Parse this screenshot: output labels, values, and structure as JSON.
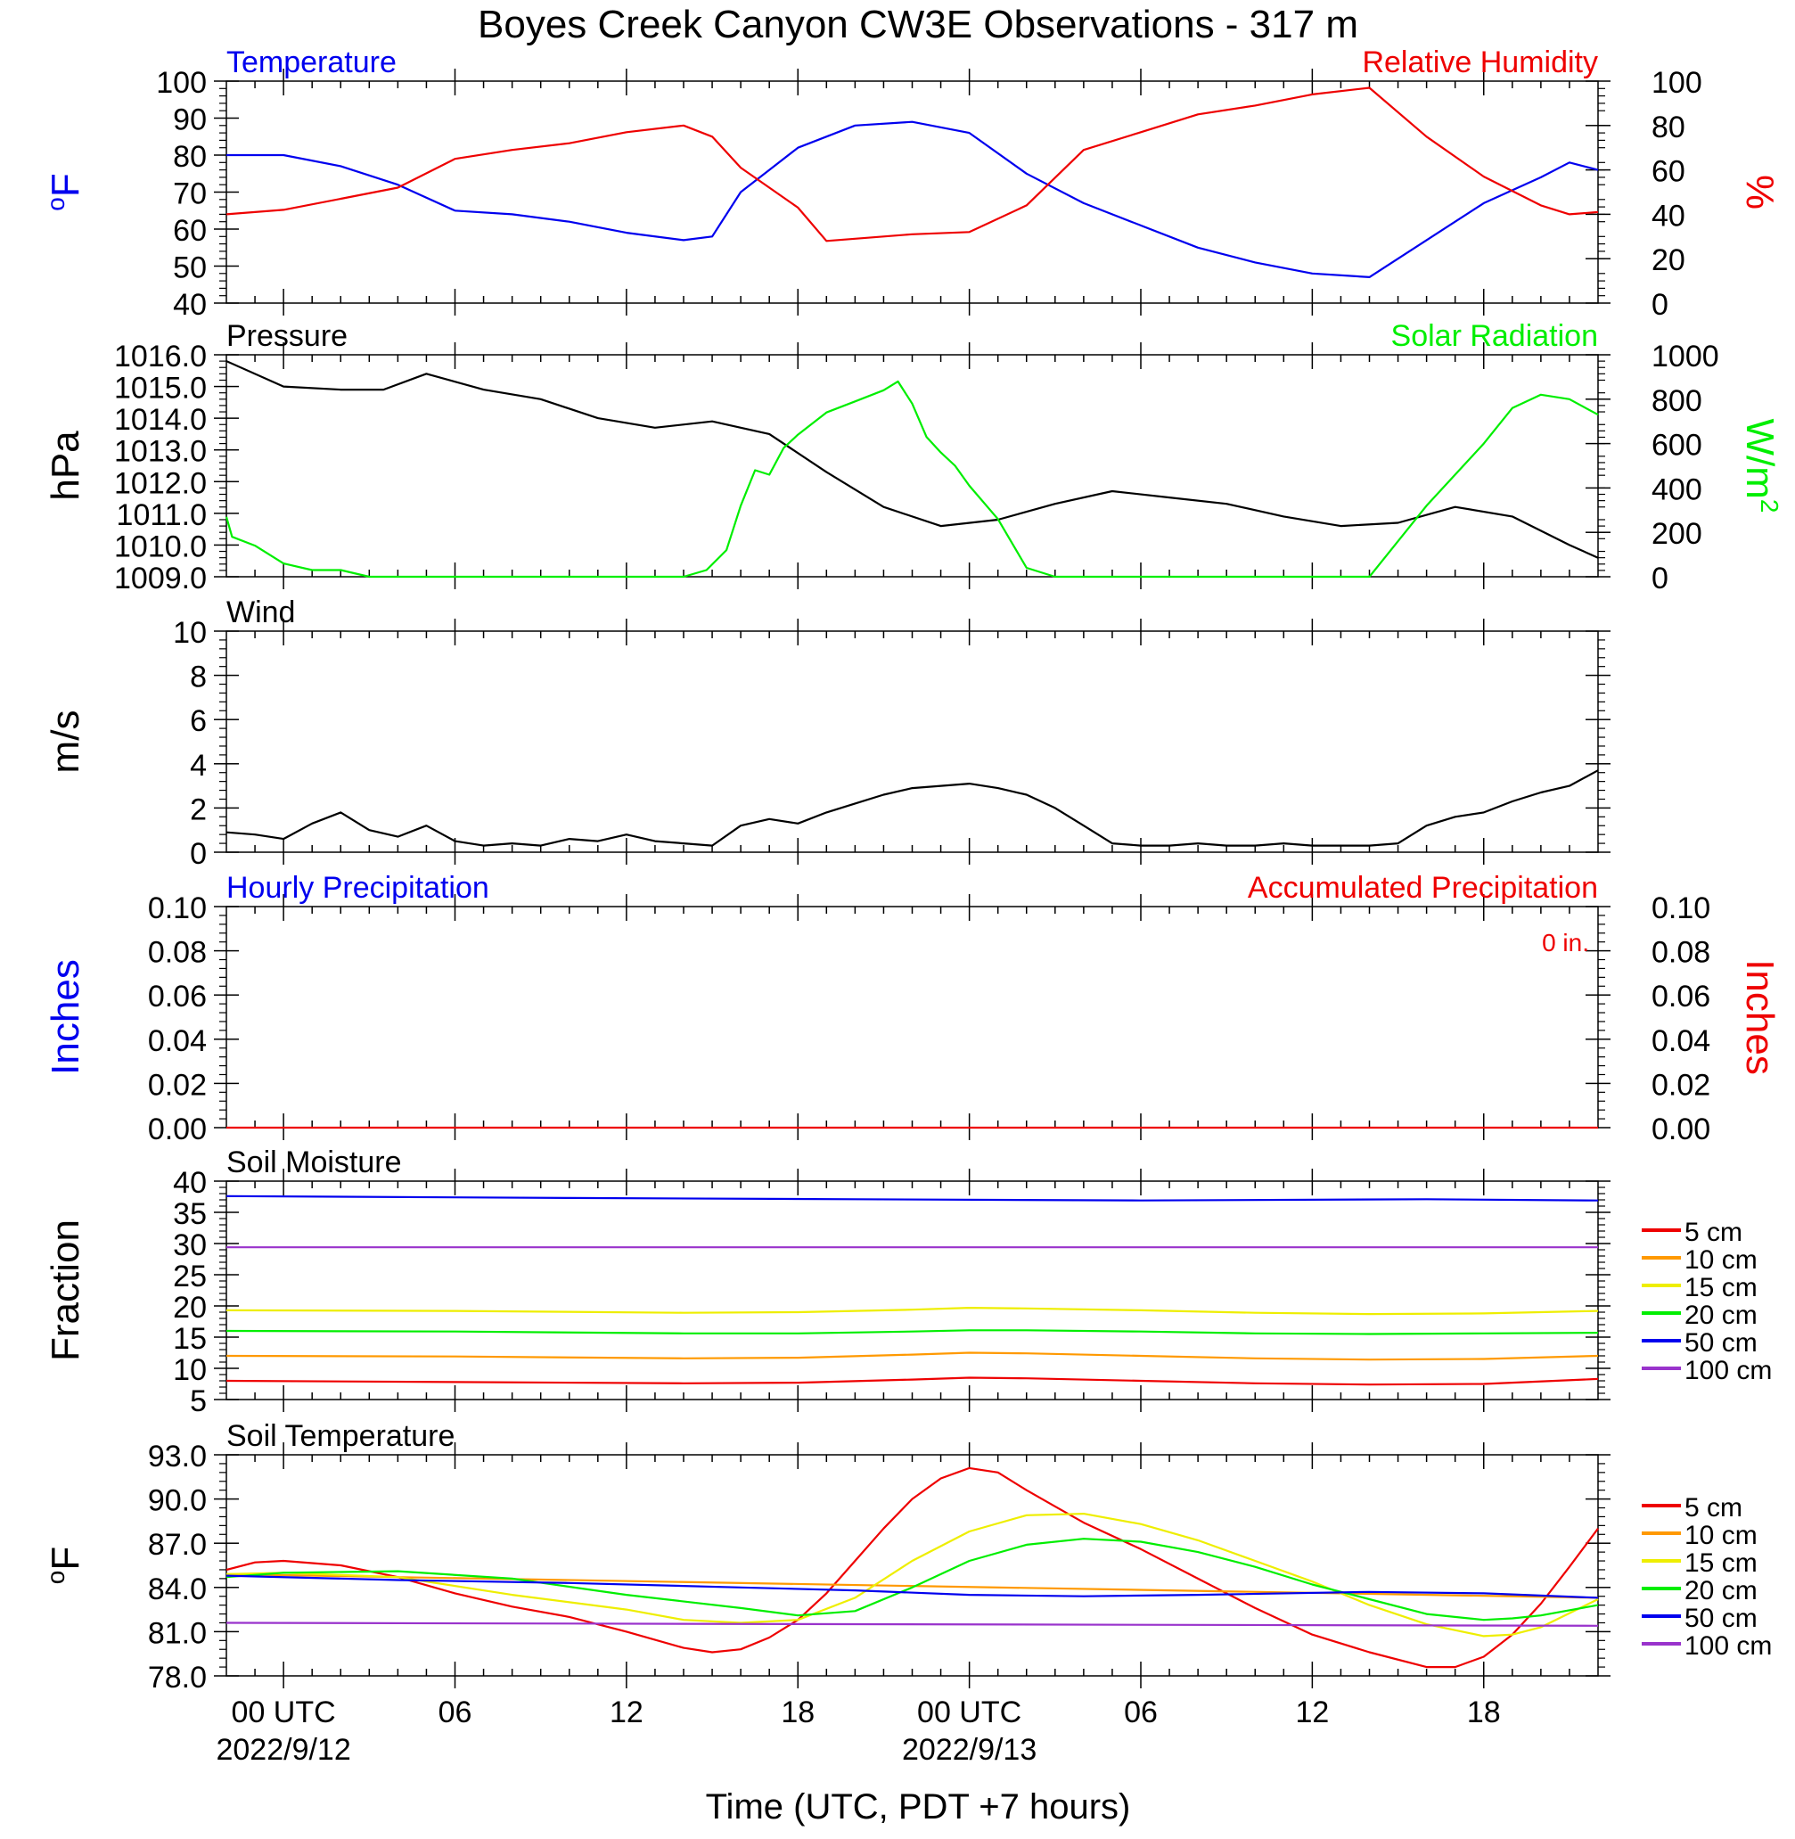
{
  "title": "Boyes Creek Canyon CW3E Observations - 317 m",
  "xlabel": "Time (UTC, PDT +7 hours)",
  "x_axis": {
    "range_hours": [
      -2,
      46
    ],
    "ticks": [
      {
        "hour": 0,
        "label": "00 UTC",
        "sublabel": "2022/9/12"
      },
      {
        "hour": 6,
        "label": "06",
        "sublabel": ""
      },
      {
        "hour": 12,
        "label": "12",
        "sublabel": ""
      },
      {
        "hour": 18,
        "label": "18",
        "sublabel": ""
      },
      {
        "hour": 24,
        "label": "00 UTC",
        "sublabel": "2022/9/13"
      },
      {
        "hour": 30,
        "label": "06",
        "sublabel": ""
      },
      {
        "hour": 36,
        "label": "12",
        "sublabel": ""
      },
      {
        "hour": 42,
        "label": "18",
        "sublabel": ""
      }
    ]
  },
  "chart_data": [
    {
      "type": "line",
      "panel": "temperature_rh",
      "left_title": "Temperature",
      "right_title": "Relative Humidity",
      "left_ylabel": "oF",
      "right_ylabel": "%",
      "left_ylim": [
        40,
        100
      ],
      "right_ylim": [
        0,
        100
      ],
      "left_ticks": [
        "100",
        "90",
        "80",
        "70",
        "60",
        "50",
        "40"
      ],
      "right_ticks": [
        "100",
        "80",
        "60",
        "40",
        "20",
        "0"
      ],
      "colors": {
        "left": "#0000ee",
        "right": "#ee0000"
      },
      "series": [
        {
          "axis": "left",
          "x": [
            -2,
            0,
            2,
            4,
            6,
            8,
            10,
            12,
            14,
            15,
            16,
            17,
            18,
            20,
            22,
            24,
            26,
            28,
            30,
            32,
            34,
            36,
            38,
            40,
            42,
            44,
            45,
            46
          ],
          "values": [
            80,
            80,
            77,
            72,
            65,
            64,
            62,
            59,
            57,
            58,
            70,
            76,
            82,
            88,
            89,
            86,
            75,
            67,
            61,
            55,
            51,
            48,
            47,
            57,
            67,
            74,
            78,
            76
          ]
        },
        {
          "axis": "right",
          "x": [
            -2,
            0,
            2,
            4,
            6,
            8,
            10,
            12,
            14,
            15,
            16,
            18,
            19,
            20,
            22,
            24,
            26,
            28,
            30,
            32,
            34,
            36,
            38,
            40,
            42,
            44,
            45,
            46
          ],
          "values": [
            40,
            42,
            47,
            52,
            65,
            69,
            72,
            77,
            80,
            75,
            61,
            43,
            28,
            29,
            31,
            32,
            44,
            69,
            77,
            85,
            89,
            94,
            97,
            75,
            57,
            44,
            40,
            41
          ]
        }
      ]
    },
    {
      "type": "line",
      "panel": "pressure_solar",
      "left_title": "Pressure",
      "right_title": "Solar Radiation",
      "left_ylabel": "hPa",
      "right_ylabel": "W/m",
      "right_ylabel_sup": "2",
      "left_ylim": [
        1009,
        1016
      ],
      "right_ylim": [
        0,
        1000
      ],
      "left_ticks": [
        "1016.0",
        "1015.0",
        "1014.0",
        "1013.0",
        "1012.0",
        "1011.0",
        "1010.0",
        "1009.0"
      ],
      "right_ticks": [
        "1000",
        "800",
        "600",
        "400",
        "200",
        "0"
      ],
      "colors": {
        "left": "#000000",
        "right": "#00ee00"
      },
      "series": [
        {
          "axis": "left",
          "x": [
            -2,
            0,
            2,
            3.5,
            5,
            7,
            9,
            11,
            13,
            15,
            17,
            19,
            21,
            23,
            25,
            27,
            29,
            31,
            33,
            35,
            37,
            39,
            41,
            43,
            45,
            46
          ],
          "values": [
            1015.8,
            1015.0,
            1014.9,
            1014.9,
            1015.4,
            1014.9,
            1014.6,
            1014.0,
            1013.7,
            1013.9,
            1013.5,
            1012.3,
            1011.2,
            1010.6,
            1010.8,
            1011.3,
            1011.7,
            1011.5,
            1011.3,
            1010.9,
            1010.6,
            1010.7,
            1011.2,
            1010.9,
            1010.0,
            1009.6
          ]
        },
        {
          "axis": "right",
          "x": [
            -2,
            -1.8,
            -1,
            0,
            1,
            2,
            3,
            14,
            14.8,
            15.5,
            16,
            16.5,
            17,
            17.5,
            18,
            19,
            20,
            21,
            21.5,
            22,
            22.5,
            23,
            23.5,
            24,
            25,
            26,
            27,
            38,
            40,
            42,
            43,
            44,
            45,
            46
          ],
          "values": [
            270,
            180,
            140,
            60,
            30,
            30,
            0,
            0,
            30,
            120,
            320,
            480,
            460,
            580,
            640,
            740,
            790,
            840,
            880,
            780,
            630,
            560,
            500,
            410,
            260,
            40,
            0,
            0,
            320,
            600,
            760,
            820,
            800,
            730
          ]
        }
      ]
    },
    {
      "type": "line",
      "panel": "wind",
      "left_title": "Wind",
      "left_ylabel": "m/s",
      "left_ylim": [
        0,
        10
      ],
      "left_ticks": [
        "10",
        "8",
        "6",
        "4",
        "2",
        "0"
      ],
      "colors": {
        "line": "#000000",
        "barbs": "#ee0000"
      },
      "series": [
        {
          "axis": "left",
          "x": [
            -2,
            -1,
            0,
            1,
            2,
            3,
            4,
            5,
            6,
            7,
            8,
            9,
            10,
            11,
            12,
            13,
            14,
            15,
            16,
            17,
            18,
            19,
            20,
            21,
            22,
            23,
            24,
            25,
            26,
            27,
            28,
            29,
            30,
            31,
            32,
            33,
            34,
            35,
            36,
            37,
            38,
            39,
            40,
            41,
            42,
            43,
            44,
            45,
            46
          ],
          "values": [
            0.9,
            0.8,
            0.6,
            1.3,
            1.8,
            1.0,
            0.7,
            1.2,
            0.5,
            0.3,
            0.4,
            0.3,
            0.6,
            0.5,
            0.8,
            0.5,
            0.4,
            0.3,
            1.2,
            1.5,
            1.3,
            1.8,
            2.2,
            2.6,
            2.9,
            3.0,
            3.1,
            2.9,
            2.6,
            2.0,
            1.2,
            0.4,
            0.3,
            0.3,
            0.4,
            0.3,
            0.3,
            0.4,
            0.3,
            0.3,
            0.3,
            0.4,
            1.2,
            1.6,
            1.8,
            2.3,
            2.7,
            3.0,
            3.7
          ]
        }
      ]
    },
    {
      "type": "line",
      "panel": "precipitation",
      "left_title": "Hourly Precipitation",
      "right_title": "Accumulated Precipitation",
      "right_annotation": "0 in.",
      "left_ylabel": "Inches",
      "right_ylabel": "Inches",
      "left_ylim": [
        0,
        0.1
      ],
      "right_ylim": [
        0,
        0.1
      ],
      "left_ticks": [
        "0.10",
        "0.08",
        "0.06",
        "0.04",
        "0.02",
        "0.00"
      ],
      "right_ticks": [
        "0.10",
        "0.08",
        "0.06",
        "0.04",
        "0.02",
        "0.00"
      ],
      "colors": {
        "left": "#0000ee",
        "right": "#ee0000"
      },
      "series": [
        {
          "axis": "right",
          "x": [
            -2,
            46
          ],
          "values": [
            0,
            0
          ]
        }
      ]
    },
    {
      "type": "line",
      "panel": "soil_moisture",
      "left_title": "Soil Moisture",
      "left_ylabel": "Fraction",
      "left_ylim": [
        5,
        40
      ],
      "left_ticks": [
        "40",
        "35",
        "30",
        "25",
        "20",
        "15",
        "10",
        "5"
      ],
      "series": [
        {
          "name": "5 cm",
          "color": "#ee0000",
          "x": [
            -2,
            6,
            14,
            18,
            22,
            24,
            26,
            30,
            34,
            38,
            42,
            46
          ],
          "values": [
            8.0,
            7.8,
            7.6,
            7.7,
            8.2,
            8.5,
            8.4,
            8.0,
            7.6,
            7.4,
            7.5,
            8.3
          ]
        },
        {
          "name": "10 cm",
          "color": "#ff9900",
          "x": [
            -2,
            6,
            14,
            18,
            22,
            24,
            26,
            30,
            34,
            38,
            42,
            46
          ],
          "values": [
            12.0,
            11.9,
            11.6,
            11.7,
            12.2,
            12.5,
            12.4,
            12.0,
            11.6,
            11.4,
            11.5,
            12.0
          ]
        },
        {
          "name": "15 cm",
          "color": "#eeee00",
          "x": [
            -2,
            6,
            14,
            18,
            22,
            24,
            26,
            30,
            34,
            38,
            42,
            46
          ],
          "values": [
            19.3,
            19.2,
            18.9,
            19.0,
            19.4,
            19.7,
            19.6,
            19.3,
            18.9,
            18.7,
            18.8,
            19.2
          ]
        },
        {
          "name": "20 cm",
          "color": "#00ee00",
          "x": [
            -2,
            6,
            14,
            18,
            22,
            24,
            26,
            30,
            34,
            38,
            42,
            46
          ],
          "values": [
            16.0,
            15.9,
            15.6,
            15.6,
            15.9,
            16.1,
            16.1,
            15.9,
            15.6,
            15.5,
            15.6,
            15.7
          ]
        },
        {
          "name": "50 cm",
          "color": "#0000ee",
          "x": [
            -2,
            10,
            20,
            30,
            40,
            46
          ],
          "values": [
            37.6,
            37.3,
            37.1,
            36.9,
            37.1,
            36.9
          ]
        },
        {
          "name": "100 cm",
          "color": "#9933cc",
          "x": [
            -2,
            46
          ],
          "values": [
            29.4,
            29.4
          ]
        }
      ]
    },
    {
      "type": "line",
      "panel": "soil_temperature",
      "left_title": "Soil Temperature",
      "left_ylabel": "oF",
      "left_ylim": [
        78,
        93
      ],
      "left_ticks": [
        "93.0",
        "90.0",
        "87.0",
        "84.0",
        "81.0",
        "78.0"
      ],
      "series": [
        {
          "name": "5 cm",
          "color": "#ee0000",
          "x": [
            -2,
            -1,
            0,
            2,
            4,
            6,
            8,
            10,
            12,
            14,
            15,
            16,
            17,
            18,
            19,
            20,
            21,
            22,
            23,
            24,
            25,
            26,
            27,
            28,
            30,
            32,
            34,
            36,
            38,
            40,
            41,
            42,
            43,
            44,
            45,
            46
          ],
          "values": [
            85.2,
            85.7,
            85.8,
            85.5,
            84.7,
            83.6,
            82.7,
            82.0,
            81.0,
            79.9,
            79.6,
            79.8,
            80.6,
            81.8,
            83.6,
            85.8,
            88.0,
            90.0,
            91.4,
            92.1,
            91.8,
            90.6,
            89.5,
            88.4,
            86.6,
            84.6,
            82.6,
            80.8,
            79.6,
            78.6,
            78.6,
            79.3,
            80.8,
            82.9,
            85.4,
            88.0
          ]
        },
        {
          "name": "10 cm",
          "color": "#ff9900",
          "x": [
            -2,
            46
          ],
          "values": [
            84.9,
            83.3
          ]
        },
        {
          "name": "15 cm",
          "color": "#eeee00",
          "x": [
            -2,
            0,
            4,
            8,
            12,
            14,
            16,
            18,
            20,
            22,
            24,
            26,
            28,
            30,
            32,
            34,
            36,
            38,
            40,
            42,
            43,
            44,
            46
          ],
          "values": [
            84.9,
            85.0,
            84.7,
            83.5,
            82.5,
            81.8,
            81.6,
            81.8,
            83.3,
            85.8,
            87.8,
            88.9,
            89.0,
            88.3,
            87.2,
            85.8,
            84.4,
            82.8,
            81.5,
            80.7,
            80.8,
            81.3,
            83.2
          ]
        },
        {
          "name": "20 cm",
          "color": "#00ee00",
          "x": [
            -2,
            0,
            4,
            8,
            12,
            16,
            18,
            20,
            22,
            24,
            26,
            28,
            30,
            32,
            34,
            36,
            38,
            40,
            42,
            43,
            44,
            46
          ],
          "values": [
            84.7,
            85.0,
            85.1,
            84.6,
            83.5,
            82.6,
            82.1,
            82.4,
            84.0,
            85.8,
            86.9,
            87.3,
            87.1,
            86.4,
            85.4,
            84.2,
            83.2,
            82.2,
            81.8,
            81.9,
            82.1,
            82.8
          ]
        },
        {
          "name": "50 cm",
          "color": "#0000ee",
          "x": [
            -2,
            4,
            10,
            16,
            20,
            24,
            28,
            32,
            38,
            42,
            46
          ],
          "values": [
            84.8,
            84.5,
            84.3,
            84.0,
            83.8,
            83.5,
            83.4,
            83.5,
            83.7,
            83.6,
            83.3
          ]
        },
        {
          "name": "100 cm",
          "color": "#9933cc",
          "x": [
            -2,
            46
          ],
          "values": [
            81.6,
            81.4
          ]
        }
      ]
    }
  ]
}
